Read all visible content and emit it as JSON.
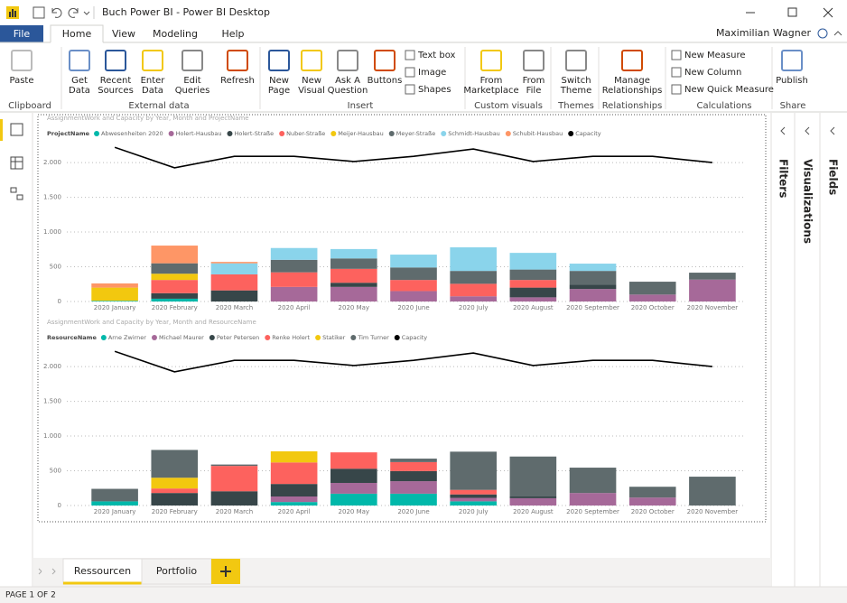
{
  "window": {
    "title": "Buch Power BI - Power BI Desktop"
  },
  "tabs": [
    "File",
    "Home",
    "View",
    "Modeling",
    "Help"
  ],
  "user": "Maximilian Wagner",
  "ribbon": [
    {
      "label": "Clipboard",
      "buttons": [
        [
          "Paste"
        ]
      ]
    },
    {
      "label": "External data",
      "buttons": [
        [
          "Get",
          "Data"
        ],
        [
          "Recent",
          "Sources"
        ],
        [
          "Enter",
          "Data"
        ],
        [
          "Edit",
          "Queries"
        ],
        [
          "Refresh"
        ]
      ]
    },
    {
      "label": "Insert",
      "buttons": [
        [
          "New",
          "Page"
        ],
        [
          "New",
          "Visual"
        ],
        [
          "Ask A",
          "Question"
        ],
        [
          "Buttons"
        ]
      ],
      "small": [
        "Text box",
        "Image",
        "Shapes"
      ]
    },
    {
      "label": "Custom visuals",
      "buttons": [
        [
          "From",
          "Marketplace"
        ],
        [
          "From",
          "File"
        ]
      ]
    },
    {
      "label": "Themes",
      "buttons": [
        [
          "Switch",
          "Theme"
        ]
      ]
    },
    {
      "label": "Relationships",
      "buttons": [
        [
          "Manage",
          "Relationships"
        ]
      ]
    },
    {
      "label": "Calculations",
      "small": [
        "New Measure",
        "New Column",
        "New Quick Measure"
      ]
    },
    {
      "label": "Share",
      "buttons": [
        [
          "Publish"
        ]
      ]
    }
  ],
  "panes": [
    "Filters",
    "Visualizations",
    "Fields"
  ],
  "page_tabs": [
    "Ressourcen",
    "Portfolio"
  ],
  "status": "PAGE 1 OF 2",
  "chart_data": [
    {
      "type": "combo",
      "title": "AssignmentWork and Capacity by Year, Month and ProjectName",
      "legend_title": "ProjectName",
      "categories": [
        "2020 January",
        "2020 February",
        "2020 March",
        "2020 April",
        "2020 May",
        "2020 June",
        "2020 July",
        "2020 August",
        "2020 September",
        "2020 October",
        "2020 November"
      ],
      "series": [
        {
          "name": "Abwesenheiten 2020",
          "color": "#01b8aa",
          "values": [
            10,
            40,
            null,
            null,
            null,
            null,
            null,
            null,
            null,
            null,
            null
          ]
        },
        {
          "name": "Holert-Hausbau",
          "color": "#a66999",
          "values": [
            null,
            null,
            null,
            210,
            210,
            150,
            75,
            60,
            180,
            100,
            315
          ]
        },
        {
          "name": "Holert-Straße",
          "color": "#374649",
          "values": [
            null,
            80,
            160,
            null,
            60,
            null,
            null,
            140,
            60,
            null,
            null
          ]
        },
        {
          "name": "Nuber-Straße",
          "color": "#fd625e",
          "values": [
            null,
            190,
            230,
            210,
            200,
            160,
            180,
            110,
            null,
            null,
            null
          ]
        },
        {
          "name": "Meijer-Hausbau",
          "color": "#f2c80f",
          "values": [
            190,
            90,
            null,
            null,
            null,
            null,
            null,
            null,
            null,
            null,
            null
          ]
        },
        {
          "name": "Meyer-Straße",
          "color": "#5f6b6d",
          "values": [
            null,
            150,
            null,
            180,
            150,
            180,
            185,
            150,
            200,
            185,
            100
          ]
        },
        {
          "name": "Schmidt-Hausbau",
          "color": "#8ad4eb",
          "values": [
            null,
            null,
            160,
            170,
            135,
            185,
            340,
            240,
            105,
            null,
            null
          ]
        },
        {
          "name": "Schubit-Hausbau",
          "color": "#fe9666",
          "values": [
            60,
            255,
            20,
            null,
            null,
            null,
            null,
            null,
            null,
            null,
            null
          ]
        },
        {
          "name": "Capacity",
          "color": "#000000",
          "type": "line",
          "values": [
            2220,
            1925,
            2090,
            2090,
            2015,
            2090,
            2195,
            2015,
            2090,
            2090,
            2000
          ]
        }
      ],
      "ylim": [
        0,
        2300
      ],
      "yticks": [
        0,
        500,
        {
          "value": 1000,
          "label": "1.000"
        },
        {
          "value": 1500,
          "label": "1.500"
        },
        {
          "value": 2000,
          "label": "2.000"
        }
      ],
      "grid": true
    },
    {
      "type": "combo",
      "title": "AssignmentWork and Capacity by Year, Month and ResourceName",
      "legend_title": "ResourceName",
      "categories": [
        "2020 January",
        "2020 February",
        "2020 March",
        "2020 April",
        "2020 May",
        "2020 June",
        "2020 July",
        "2020 August",
        "2020 September",
        "2020 October",
        "2020 November"
      ],
      "series": [
        {
          "name": "Arne Zwirner",
          "color": "#01b8aa",
          "values": [
            60,
            null,
            null,
            50,
            170,
            170,
            60,
            null,
            null,
            null,
            null
          ]
        },
        {
          "name": "Michael Maurer",
          "color": "#a66999",
          "values": [
            null,
            null,
            null,
            80,
            155,
            180,
            50,
            105,
            180,
            115,
            null
          ]
        },
        {
          "name": "Peter Petersen",
          "color": "#374649",
          "values": [
            null,
            180,
            205,
            180,
            205,
            145,
            50,
            30,
            null,
            null,
            null
          ]
        },
        {
          "name": "Renke Holert",
          "color": "#fd625e",
          "values": [
            null,
            65,
            365,
            310,
            235,
            130,
            65,
            null,
            null,
            null,
            null
          ]
        },
        {
          "name": "Statiker",
          "color": "#f2c80f",
          "values": [
            null,
            155,
            null,
            160,
            null,
            null,
            null,
            null,
            null,
            null,
            null
          ]
        },
        {
          "name": "Tim Turner",
          "color": "#5f6b6d",
          "values": [
            180,
            400,
            20,
            null,
            null,
            50,
            550,
            570,
            365,
            155,
            415
          ]
        },
        {
          "name": "Capacity",
          "color": "#000000",
          "type": "line",
          "values": [
            2220,
            1925,
            2090,
            2090,
            2015,
            2090,
            2195,
            2015,
            2090,
            2090,
            2000
          ]
        }
      ],
      "ylim": [
        0,
        2300
      ],
      "yticks": [
        0,
        500,
        {
          "value": 1000,
          "label": "1.000"
        },
        {
          "value": 1500,
          "label": "1.500"
        },
        {
          "value": 2000,
          "label": "2.000"
        }
      ],
      "grid": true
    }
  ]
}
